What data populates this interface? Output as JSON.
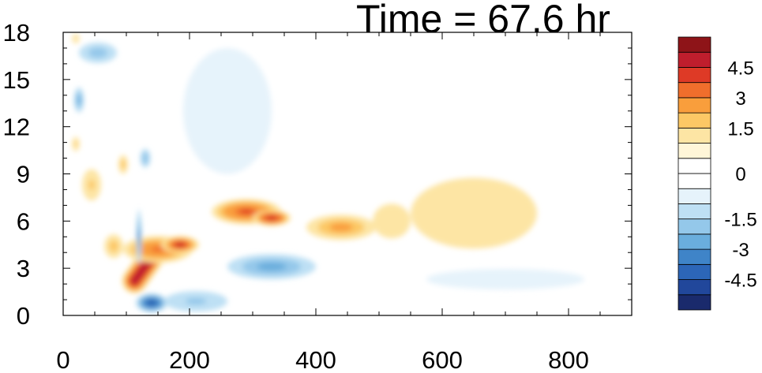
{
  "chart_data": {
    "type": "heatmap",
    "title": "Time = 67.6 hr",
    "xlabel": "",
    "ylabel": "",
    "xlim": [
      0,
      900
    ],
    "ylim": [
      0,
      18
    ],
    "x_ticks": [
      0,
      200,
      400,
      600,
      800
    ],
    "y_ticks": [
      0,
      3,
      6,
      9,
      12,
      15,
      18
    ],
    "grid": false,
    "colorbar": {
      "placement": "right",
      "levels": [
        -5.25,
        -4.5,
        -3.75,
        -3,
        -2.25,
        -1.5,
        -0.75,
        -0.25,
        0,
        0.25,
        0.75,
        1.5,
        2.25,
        3,
        3.75,
        4.5,
        5.25
      ],
      "labels": [
        "4.5",
        "3",
        "1.5",
        "0",
        "-1.5",
        "-3",
        "-4.5"
      ],
      "label_values": [
        4.5,
        3,
        1.5,
        0,
        -1.5,
        -3,
        -4.5
      ],
      "colors": [
        "#1a2a6c",
        "#21479b",
        "#2c66b8",
        "#3f84c8",
        "#6aaedd",
        "#94c8ea",
        "#bee0f4",
        "#e6f3fb",
        "#ffffff",
        "#ffffff",
        "#fff6d8",
        "#fde5a4",
        "#fcc865",
        "#f99e3c",
        "#f06e2c",
        "#de3a26",
        "#bf1e2d",
        "#8e1418"
      ]
    },
    "features": [
      {
        "kind": "warm",
        "x": 113,
        "y": 2.2,
        "w": 20,
        "h": 1.6,
        "value": 5.2,
        "shape": "line",
        "x2": 140,
        "y2": 3.7
      },
      {
        "kind": "warm",
        "x": 150,
        "y": 4.2,
        "w": 110,
        "h": 1.7,
        "value": 3.6
      },
      {
        "kind": "warm",
        "x": 185,
        "y": 4.5,
        "w": 60,
        "h": 1.1,
        "value": 4.8
      },
      {
        "kind": "warm",
        "x": 290,
        "y": 6.6,
        "w": 110,
        "h": 1.6,
        "value": 4.2
      },
      {
        "kind": "warm",
        "x": 330,
        "y": 6.2,
        "w": 60,
        "h": 1.0,
        "value": 5.0
      },
      {
        "kind": "warm",
        "x": 440,
        "y": 5.6,
        "w": 110,
        "h": 1.6,
        "value": 2.6
      },
      {
        "kind": "warm",
        "x": 520,
        "y": 6.0,
        "w": 60,
        "h": 2.2,
        "value": 1.5
      },
      {
        "kind": "warm",
        "x": 650,
        "y": 6.5,
        "w": 200,
        "h": 4.5,
        "value": 0.8
      },
      {
        "kind": "warm",
        "x": 45,
        "y": 8.3,
        "w": 30,
        "h": 2.0,
        "value": 2.0
      },
      {
        "kind": "warm",
        "x": 20,
        "y": 10.9,
        "w": 12,
        "h": 0.9,
        "value": 2.0
      },
      {
        "kind": "warm",
        "x": 95,
        "y": 9.6,
        "w": 15,
        "h": 1.2,
        "value": 1.6
      },
      {
        "kind": "warm",
        "x": 80,
        "y": 4.4,
        "w": 30,
        "h": 1.5,
        "value": 1.6
      },
      {
        "kind": "warm",
        "x": 20,
        "y": 17.6,
        "w": 12,
        "h": 0.6,
        "value": 1.4
      },
      {
        "kind": "cool",
        "x": 140,
        "y": 0.8,
        "w": 50,
        "h": 1.2,
        "value": -5.0
      },
      {
        "kind": "cool",
        "x": 210,
        "y": 0.9,
        "w": 100,
        "h": 1.3,
        "value": -2.0
      },
      {
        "kind": "cool",
        "x": 330,
        "y": 3.1,
        "w": 140,
        "h": 1.6,
        "value": -2.4
      },
      {
        "kind": "cool",
        "x": 25,
        "y": 13.7,
        "w": 16,
        "h": 1.6,
        "value": -2.6
      },
      {
        "kind": "cool",
        "x": 55,
        "y": 16.7,
        "w": 60,
        "h": 1.3,
        "value": -1.8
      },
      {
        "kind": "cool",
        "x": 130,
        "y": 10.0,
        "w": 16,
        "h": 1.2,
        "value": -2.2
      },
      {
        "kind": "cool",
        "x": 120,
        "y": 5.0,
        "w": 8,
        "h": 3.5,
        "value": -3.0
      },
      {
        "kind": "cool",
        "x": 260,
        "y": 13.0,
        "w": 140,
        "h": 8.0,
        "value": -0.6
      },
      {
        "kind": "cool",
        "x": 700,
        "y": 2.3,
        "w": 250,
        "h": 1.3,
        "value": -0.6
      }
    ]
  }
}
